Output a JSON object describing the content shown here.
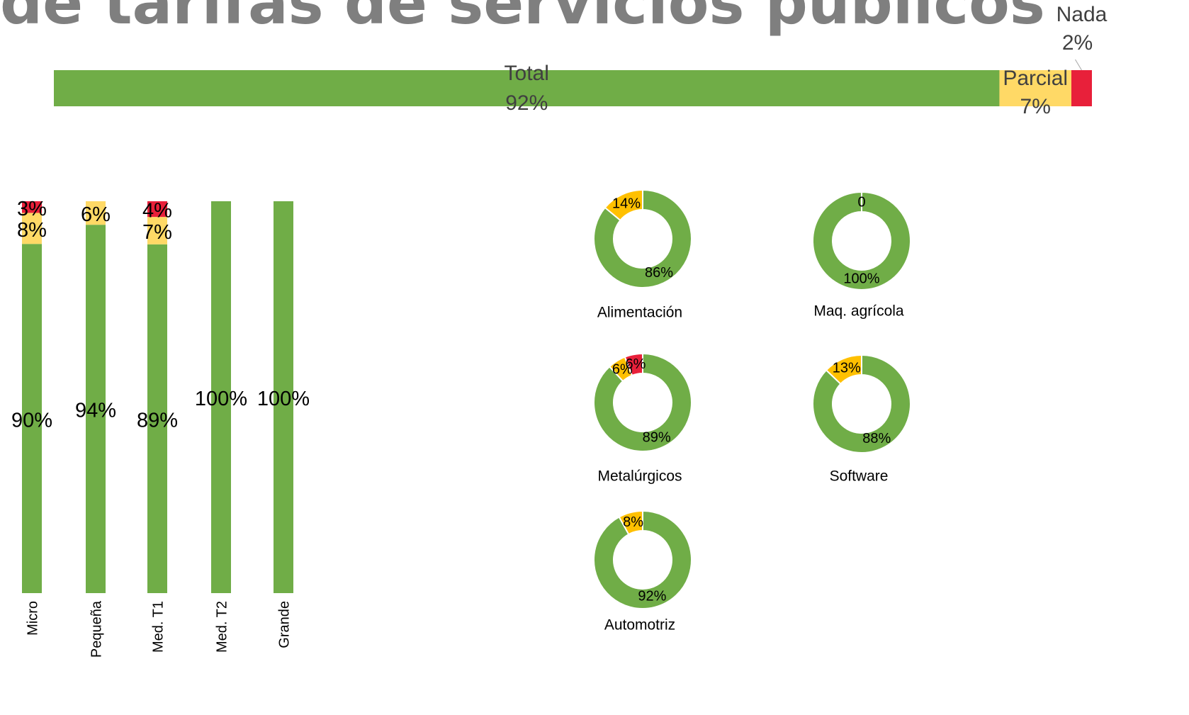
{
  "title": "de tarifas de servicios públicos",
  "chart_data": [
    {
      "type": "hbar-stacked",
      "series": [
        {
          "name": "Total",
          "color": "#70ad47",
          "values": [
            92
          ],
          "value_labels": [
            "92%"
          ]
        },
        {
          "name": "Parcial",
          "color": "#ffd966",
          "values": [
            7
          ],
          "value_labels": [
            "7%"
          ]
        },
        {
          "name": "Nada",
          "color": "#e8203a",
          "values": [
            2
          ],
          "value_labels": [
            "2%"
          ]
        }
      ]
    },
    {
      "type": "stacked-bar",
      "categories": [
        "Micro",
        "Pequeña",
        "Med. T1",
        "Med. T2",
        "Grande"
      ],
      "series": [
        {
          "color": "#70ad47",
          "values": [
            90,
            94,
            89,
            100,
            100
          ],
          "value_labels": [
            "90%",
            "94%",
            "89%",
            "100%",
            "100%"
          ]
        },
        {
          "color": "#ffd966",
          "values": [
            8,
            6,
            7,
            0,
            0
          ],
          "value_labels": [
            "8%",
            "6%",
            "7%",
            null,
            null
          ]
        },
        {
          "color": "#e8203a",
          "values": [
            3,
            0,
            4,
            0,
            0
          ],
          "value_labels": [
            "3%",
            null,
            "4%",
            null,
            null
          ]
        }
      ]
    },
    {
      "type": "donut",
      "title": "Alimentación",
      "colors": [
        "#70ad47",
        "#ffc000"
      ],
      "values": [
        86,
        14
      ],
      "value_labels": [
        "86%",
        "14%"
      ]
    },
    {
      "type": "donut",
      "title": "Maq. agrícola",
      "colors": [
        "#70ad47",
        "#ffc000"
      ],
      "values": [
        100,
        0
      ],
      "value_labels": [
        "100%",
        "0"
      ]
    },
    {
      "type": "donut",
      "title": "Metalúrgicos",
      "colors": [
        "#70ad47",
        "#ffc000",
        "#e8203a"
      ],
      "values": [
        89,
        6,
        6
      ],
      "value_labels": [
        "89%",
        "6%",
        "6%"
      ]
    },
    {
      "type": "donut",
      "title": "Software",
      "colors": [
        "#70ad47",
        "#ffc000"
      ],
      "values": [
        88,
        13
      ],
      "value_labels": [
        "88%",
        "13%"
      ]
    },
    {
      "type": "donut",
      "title": "Automotriz",
      "colors": [
        "#70ad47",
        "#ffc000"
      ],
      "values": [
        92,
        8
      ],
      "value_labels": [
        "92%",
        "8%"
      ]
    }
  ]
}
